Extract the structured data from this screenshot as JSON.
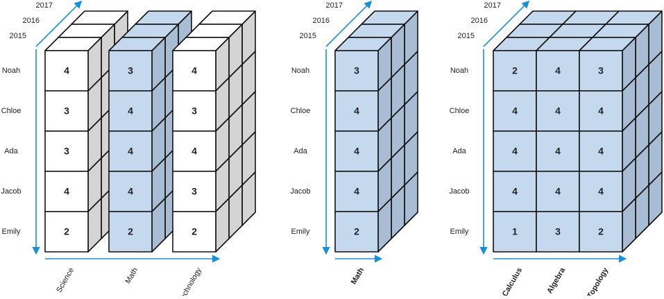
{
  "panels": [
    {
      "years": [
        "2015",
        "2016",
        "2017"
      ],
      "rows": [
        "Noah",
        "Chloe",
        "Ada",
        "Jacob",
        "Emily"
      ],
      "columns": [
        "Science",
        "Math",
        "Technology"
      ],
      "column_colors": [
        "#ffffff",
        "#c5d9ee",
        "#ffffff"
      ],
      "cells": [
        [
          4,
          3,
          4
        ],
        [
          3,
          4,
          3
        ],
        [
          3,
          4,
          4
        ],
        [
          4,
          4,
          3
        ],
        [
          2,
          2,
          2
        ]
      ]
    },
    {
      "years": [
        "2015",
        "2016",
        "2017"
      ],
      "rows": [
        "Noah",
        "Chloe",
        "Ada",
        "Jacob",
        "Emily"
      ],
      "columns": [
        "Math"
      ],
      "column_colors": [
        "#c5d9ee"
      ],
      "cells": [
        [
          3
        ],
        [
          4
        ],
        [
          4
        ],
        [
          4
        ],
        [
          2
        ]
      ]
    },
    {
      "years": [
        "2015",
        "2016",
        "2017"
      ],
      "rows": [
        "Noah",
        "Chloe",
        "Ada",
        "Jacob",
        "Emily"
      ],
      "columns": [
        "Calculus",
        "Algebra",
        "Topology"
      ],
      "column_colors": [
        "#c5d9ee",
        "#c5d9ee",
        "#c5d9ee"
      ],
      "cells": [
        [
          2,
          4,
          3
        ],
        [
          4,
          4,
          4
        ],
        [
          4,
          4,
          4
        ],
        [
          4,
          4,
          4
        ],
        [
          1,
          3,
          2
        ]
      ]
    }
  ]
}
